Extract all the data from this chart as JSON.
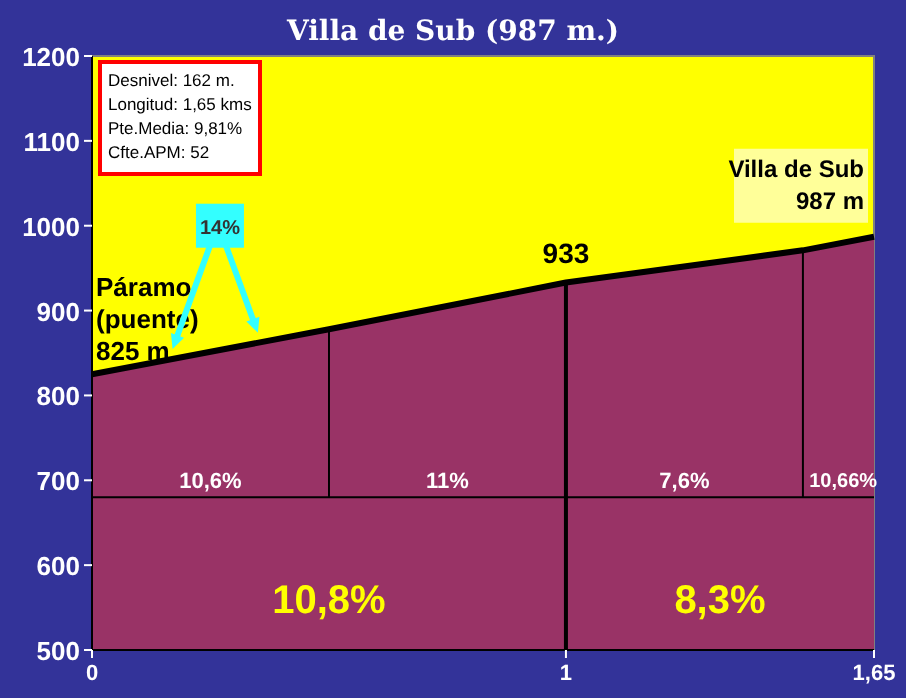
{
  "chart_data": {
    "type": "area",
    "title": "Villa de Sub (987 m.)",
    "x": [
      0,
      0.5,
      1,
      1.5,
      1.65
    ],
    "series": [
      {
        "color": "#993366",
        "values": [
          825,
          878,
          933,
          971,
          987
        ]
      }
    ],
    "xlim": [
      0,
      1.65
    ],
    "xticks": [
      0,
      1,
      {
        "value": 1.65,
        "label": "1,65"
      }
    ],
    "ylim": [
      500,
      1200
    ],
    "yticks": [
      500,
      600,
      700,
      800,
      900,
      1000,
      1100,
      1200
    ],
    "grid": false,
    "ref_lines": [
      {
        "axis": "y",
        "value": 680
      },
      {
        "axis": "x",
        "value": 0.5
      },
      {
        "axis": "x",
        "value": 1
      },
      {
        "axis": "x",
        "value": 1.5
      }
    ],
    "annotations": [
      "Desnivel: 162 m.",
      "Longitud: 1,65 kms",
      "Pte.Media: 9,81%",
      "Cfte.APM:  52",
      {
        "text": "Páramo\n(puente)\n825 m",
        "x": 0,
        "y": 825
      },
      "14%",
      {
        "text": "933",
        "x": 1,
        "y": 933
      },
      {
        "text": "Villa de Sub\n987 m",
        "x": 1.65,
        "y": 987
      },
      "10,6%",
      "11%",
      "7,6%",
      "10,66%",
      "10,8%",
      "8,3%"
    ]
  }
}
